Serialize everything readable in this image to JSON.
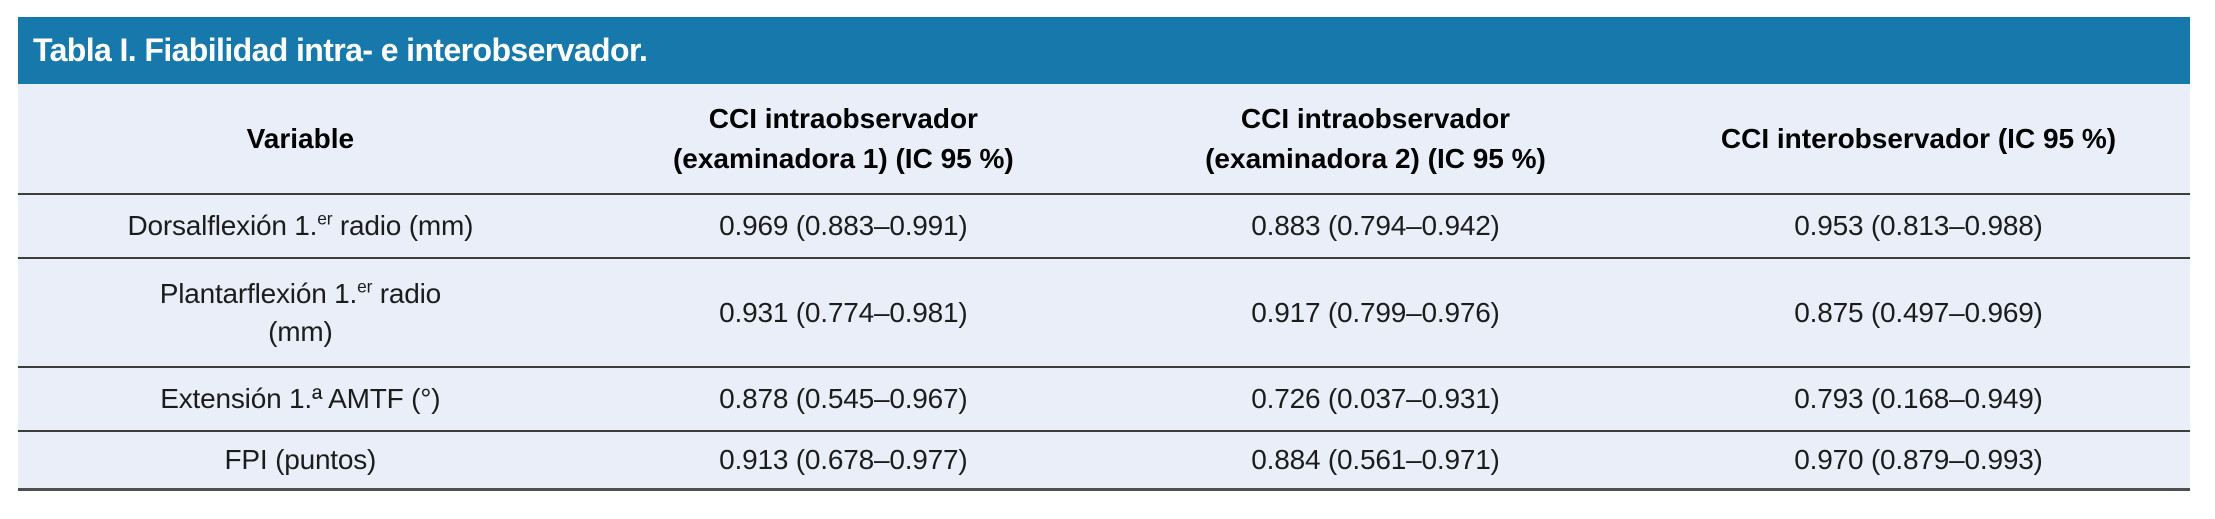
{
  "table": {
    "title": "Tabla I. Fiabilidad intra- e interobservador.",
    "columns": [
      {
        "label": "Variable"
      },
      {
        "label": "CCI intraobservador\n(examinadora 1) (IC 95 %)"
      },
      {
        "label": "CCI intraobservador\n(examinadora 2) (IC 95 %)"
      },
      {
        "label": "CCI interobservador (IC 95 %)"
      }
    ],
    "rows": [
      {
        "variable": {
          "pre": "Dorsalflexión 1.",
          "sup": "er",
          "post": " radio (mm)"
        },
        "values": [
          "0.969 (0.883–0.991)",
          "0.883 (0.794–0.942)",
          "0.953 (0.813–0.988)"
        ]
      },
      {
        "variable": {
          "pre": "Plantarflexión 1.",
          "sup": "er",
          "post": " radio\n(mm)"
        },
        "values": [
          "0.931 (0.774–0.981)",
          "0.917 (0.799–0.976)",
          "0.875 (0.497–0.969)"
        ]
      },
      {
        "variable": {
          "pre": "Extensión 1.ª AMTF (°)",
          "sup": "",
          "post": ""
        },
        "values": [
          "0.878 (0.545–0.967)",
          "0.726 (0.037–0.931)",
          "0.793 (0.168–0.949)"
        ]
      },
      {
        "variable": {
          "pre": "FPI (puntos)",
          "sup": "",
          "post": ""
        },
        "values": [
          "0.913 (0.678–0.977)",
          "0.884 (0.561–0.971)",
          "0.970 (0.879–0.993)"
        ]
      }
    ],
    "colors": {
      "header_bg": "#1779AB",
      "body_bg": "#E9EEF8",
      "line": "#3D3D3D",
      "text": "#1C1C1C",
      "title_text": "#FFFFFF"
    }
  }
}
